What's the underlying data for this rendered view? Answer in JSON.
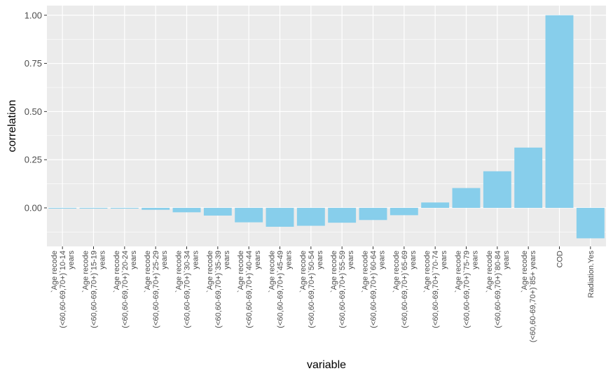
{
  "chart_data": {
    "type": "bar",
    "title": "",
    "xlabel": "variable",
    "ylabel": "correlation",
    "ylim": [
      -0.2,
      1.05
    ],
    "y_ticks": [
      0.0,
      0.25,
      0.5,
      0.75,
      1.0
    ],
    "y_tick_labels": [
      "0.00",
      "0.25",
      "0.50",
      "0.75",
      "1.00"
    ],
    "grid": true,
    "bar_color": "#87CEEB",
    "panel_color": "#EBEBEB",
    "categories": [
      [
        "`Age recode",
        "(<60,60-69,70+)`10-14",
        "years"
      ],
      [
        "`Age recode",
        "(<60,60-69,70+)`15-19",
        "years"
      ],
      [
        "`Age recode",
        "(<60,60-69,70+)`20-24",
        "years"
      ],
      [
        "`Age recode",
        "(<60,60-69,70+)`25-29",
        "years"
      ],
      [
        "`Age recode",
        "(<60,60-69,70+)`30-34",
        "years"
      ],
      [
        "`Age recode",
        "(<60,60-69,70+)`35-39",
        "years"
      ],
      [
        "`Age recode",
        "(<60,60-69,70+)`40-44",
        "years"
      ],
      [
        "`Age recode",
        "(<60,60-69,70+)`45-49",
        "years"
      ],
      [
        "`Age recode",
        "(<60,60-69,70+)`50-54",
        "years"
      ],
      [
        "`Age recode",
        "(<60,60-69,70+)`55-59",
        "years"
      ],
      [
        "`Age recode",
        "(<60,60-69,70+)`60-64",
        "years"
      ],
      [
        "`Age recode",
        "(<60,60-69,70+)`65-69",
        "years"
      ],
      [
        "`Age recode",
        "(<60,60-69,70+)`70-74",
        "years"
      ],
      [
        "`Age recode",
        "(<60,60-69,70+)`75-79",
        "years"
      ],
      [
        "`Age recode",
        "(<60,60-69,70+)`80-84",
        "years"
      ],
      [
        "`Age recode",
        "(<60,60-69,70+)`85+ years"
      ],
      [
        "COD"
      ],
      [
        "Radiation.Yes"
      ]
    ],
    "values": [
      -0.002,
      0.0,
      -0.002,
      -0.01,
      -0.023,
      -0.04,
      -0.075,
      -0.098,
      -0.093,
      -0.077,
      -0.063,
      -0.038,
      0.028,
      0.103,
      0.19,
      0.313,
      1.0,
      -0.158
    ]
  }
}
